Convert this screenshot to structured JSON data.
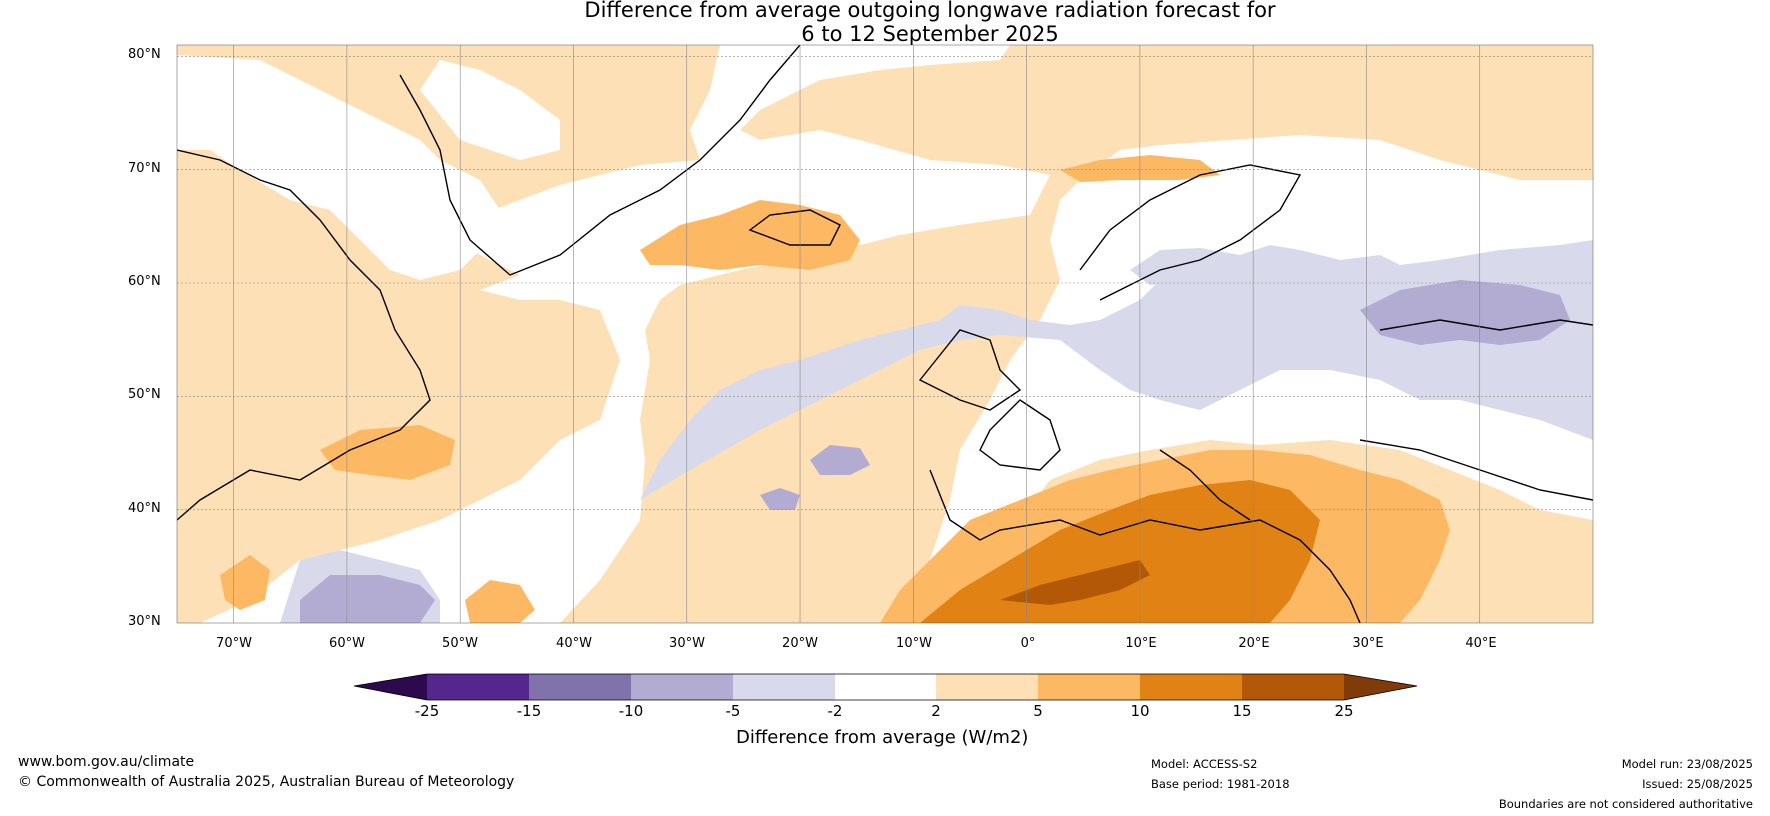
{
  "title": {
    "line1": "Difference from average outgoing longwave radiation forecast for",
    "line2": "6 to 12 September 2025"
  },
  "map": {
    "lat_labels": [
      "80°N",
      "70°N",
      "60°N",
      "50°N",
      "40°N",
      "30°N"
    ],
    "lon_labels": [
      "70°W",
      "60°W",
      "50°W",
      "40°W",
      "30°W",
      "20°W",
      "10°W",
      "0°",
      "10°E",
      "20°E",
      "30°E",
      "40°E"
    ],
    "extent": {
      "lon_min": -75,
      "lon_max": 50,
      "lat_min": 30,
      "lat_max": 81
    }
  },
  "colorbar": {
    "label": "Difference from average (W/m2)",
    "ticks": [
      "-25",
      "-15",
      "-10",
      "-5",
      "-2",
      "2",
      "5",
      "10",
      "15",
      "25"
    ],
    "colors": {
      "below_-25": "#2d0a4e",
      "-25_-15": "#54278f",
      "-15_-10": "#8073ac",
      "-10_-5": "#b2abd2",
      "-5_-2": "#d8daeb",
      "-2_2": "#ffffff",
      "2_5": "#fee0b6",
      "5_10": "#fdb863",
      "10_15": "#e08214",
      "15_25": "#b35806",
      "above_25": "#7f3b08"
    }
  },
  "footer": {
    "website": "www.bom.gov.au/climate",
    "copyright": "© Commonwealth of Australia 2025, Australian Bureau of Meteorology",
    "model": "Model: ACCESS-S2",
    "base_period": "Base period: 1981-2018",
    "model_run": "Model run: 23/08/2025",
    "issued": "Issued: 25/08/2025",
    "disclaimer": "Boundaries are not considered authoritative"
  }
}
